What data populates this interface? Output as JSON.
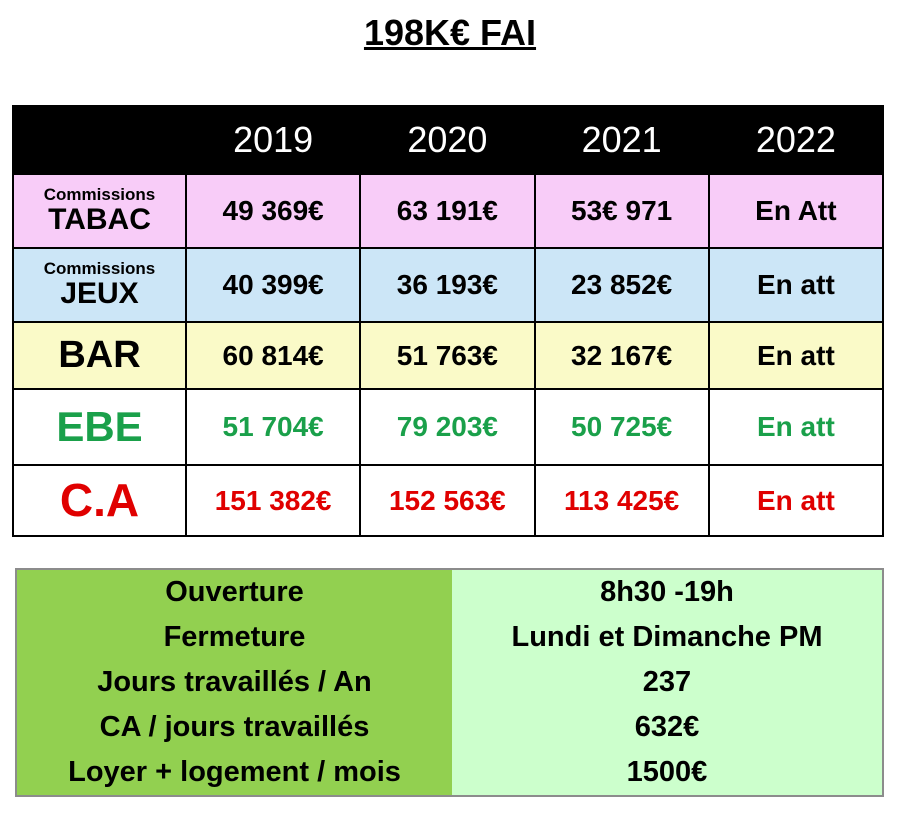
{
  "title": "198K€ FAI",
  "table": {
    "header": [
      "2019",
      "2020",
      "2021",
      "2022"
    ],
    "rows": [
      {
        "label": [
          "Commissions",
          "TABAC"
        ],
        "cells": [
          "49 369€",
          "63 191€",
          "53€ 971",
          "En Att"
        ]
      },
      {
        "label": [
          "Commissions",
          "JEUX"
        ],
        "cells": [
          "40 399€",
          "36 193€",
          "23 852€",
          "En att"
        ]
      },
      {
        "label": [
          "BAR"
        ],
        "cells": [
          "60 814€",
          "51 763€",
          "32 167€",
          "En att"
        ]
      },
      {
        "label": [
          "EBE"
        ],
        "cells": [
          "51 704€",
          "79 203€",
          "50 725€",
          "En att"
        ]
      },
      {
        "label": [
          "C.A"
        ],
        "cells": [
          "151 382€",
          "152 563€",
          "113 425€",
          "En att"
        ]
      }
    ]
  },
  "info": {
    "rows": [
      [
        "Ouverture",
        "8h30 -19h"
      ],
      [
        "Fermeture",
        "Lundi et Dimanche PM"
      ],
      [
        "Jours travaillés / An",
        "237"
      ],
      [
        "CA / jours travaillés",
        "632€"
      ],
      [
        "Loyer + logement / mois",
        "1500€"
      ]
    ]
  }
}
